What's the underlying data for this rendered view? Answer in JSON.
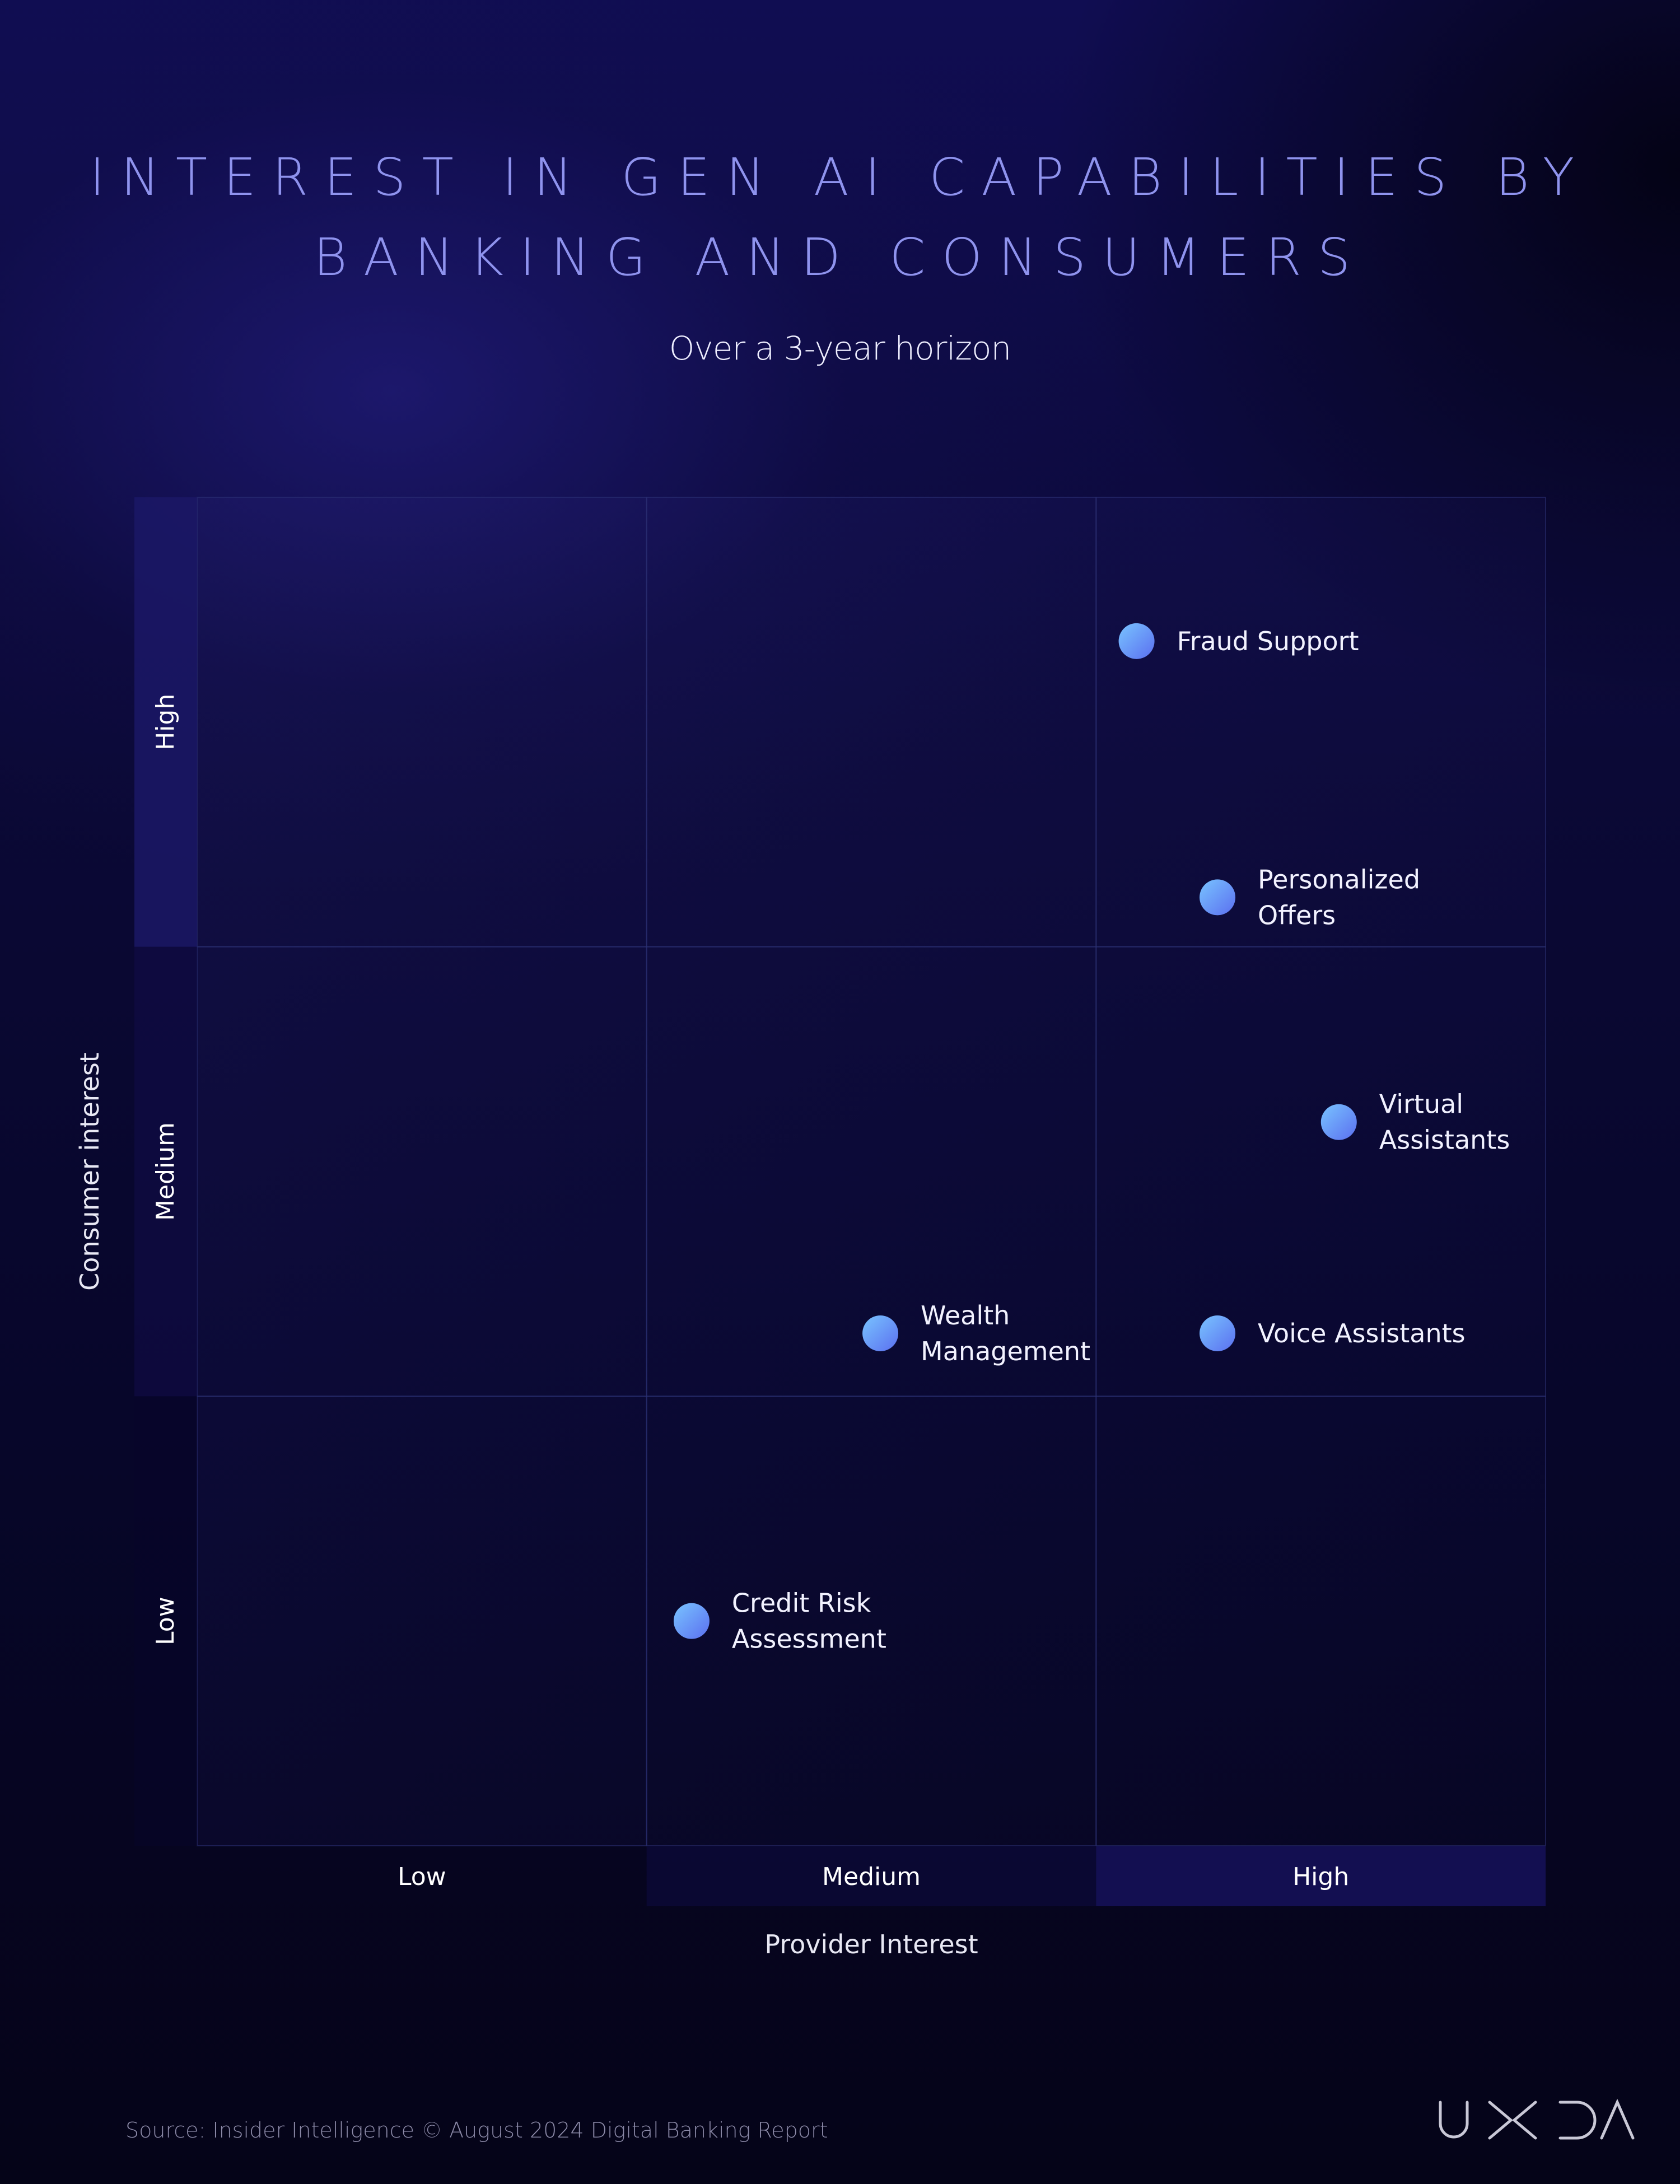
{
  "chart_data": {
    "type": "scatter",
    "title_lines": [
      "INTEREST IN GEN AI CAPABILITIES BY",
      "BANKING AND CONSUMERS"
    ],
    "subtitle": "Over a 3-year horizon",
    "xlabel": "Provider Interest",
    "ylabel": "Consumer interest",
    "x_categories": [
      "Low",
      "Medium",
      "High"
    ],
    "y_categories": [
      "Low",
      "Medium",
      "High"
    ],
    "xlim": [
      0,
      3
    ],
    "ylim": [
      0,
      3
    ],
    "grid": true,
    "points": [
      {
        "label": [
          "Fraud Support"
        ],
        "x": 2.09,
        "y": 2.68
      },
      {
        "label": [
          "Personalized",
          "Offers"
        ],
        "x": 2.27,
        "y": 2.11
      },
      {
        "label": [
          "Virtual",
          "Assistants"
        ],
        "x": 2.54,
        "y": 1.61
      },
      {
        "label": [
          "Wealth",
          "Management"
        ],
        "x": 1.52,
        "y": 1.14
      },
      {
        "label": [
          "Voice Assistants"
        ],
        "x": 2.27,
        "y": 1.14
      },
      {
        "label": [
          "Credit Risk",
          "Assessment"
        ],
        "x": 1.1,
        "y": 0.5
      }
    ],
    "colors": {
      "point_start": "#5b6ff0",
      "point_end": "#79c4ff",
      "title": "#8f93ee"
    }
  },
  "footer": {
    "source": "Source: Insider Intelligence © August 2024 Digital Banking Report"
  },
  "logo": {
    "text": "UXDA"
  }
}
